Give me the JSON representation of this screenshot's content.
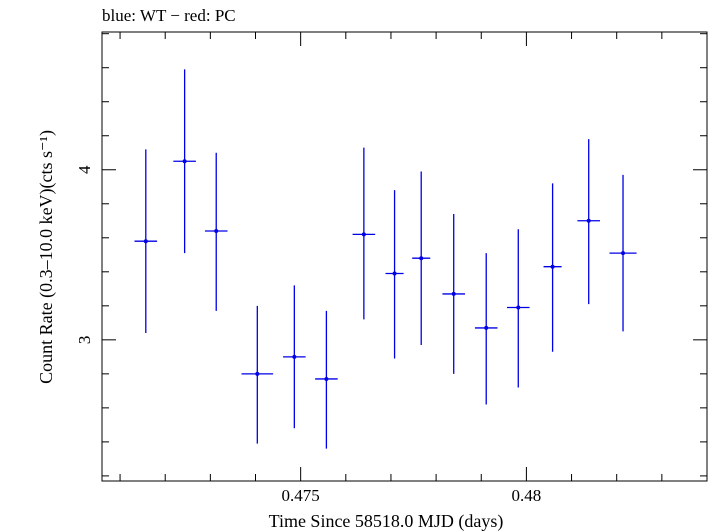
{
  "chart_data": {
    "type": "scatter",
    "title": "blue: WT − red: PC",
    "xlabel": "Time Since 58518.0 MJD (days)",
    "ylabel": "Count Rate (0.3–10.0 keV)(cts s⁻¹)",
    "xlim": [
      0.4706,
      0.484
    ],
    "ylim": [
      2.17,
      4.81
    ],
    "x_ticks": [
      0.475,
      0.48
    ],
    "x_tick_labels": [
      "0.475",
      "0.48"
    ],
    "y_ticks": [
      3,
      4
    ],
    "y_tick_labels": [
      "3",
      "4"
    ],
    "grid": false,
    "legend": "none",
    "colors": {
      "WT": "#0000e6",
      "PC": "#e60000",
      "axes": "#000000"
    },
    "series": [
      {
        "name": "WT",
        "x": [
          0.47157,
          0.47243,
          0.47313,
          0.47404,
          0.47486,
          0.47557,
          0.4764,
          0.47708,
          0.47767,
          0.47839,
          0.47911,
          0.47982,
          0.48058,
          0.48138,
          0.48214
        ],
        "xerr": [
          0.00025,
          0.00025,
          0.00025,
          0.00035,
          0.00025,
          0.00025,
          0.00025,
          0.0002,
          0.0002,
          0.00025,
          0.00025,
          0.00025,
          0.0002,
          0.00025,
          0.0003
        ],
        "y": [
          3.58,
          4.05,
          3.64,
          2.8,
          2.9,
          2.77,
          3.62,
          3.39,
          3.48,
          3.27,
          3.07,
          3.19,
          3.43,
          3.7,
          3.51
        ],
        "yerr_low": [
          0.54,
          0.54,
          0.47,
          0.41,
          0.42,
          0.41,
          0.5,
          0.5,
          0.51,
          0.47,
          0.45,
          0.47,
          0.5,
          0.49,
          0.46
        ],
        "yerr_high": [
          0.54,
          0.54,
          0.46,
          0.4,
          0.42,
          0.4,
          0.51,
          0.49,
          0.51,
          0.47,
          0.44,
          0.46,
          0.49,
          0.48,
          0.46
        ]
      }
    ]
  }
}
